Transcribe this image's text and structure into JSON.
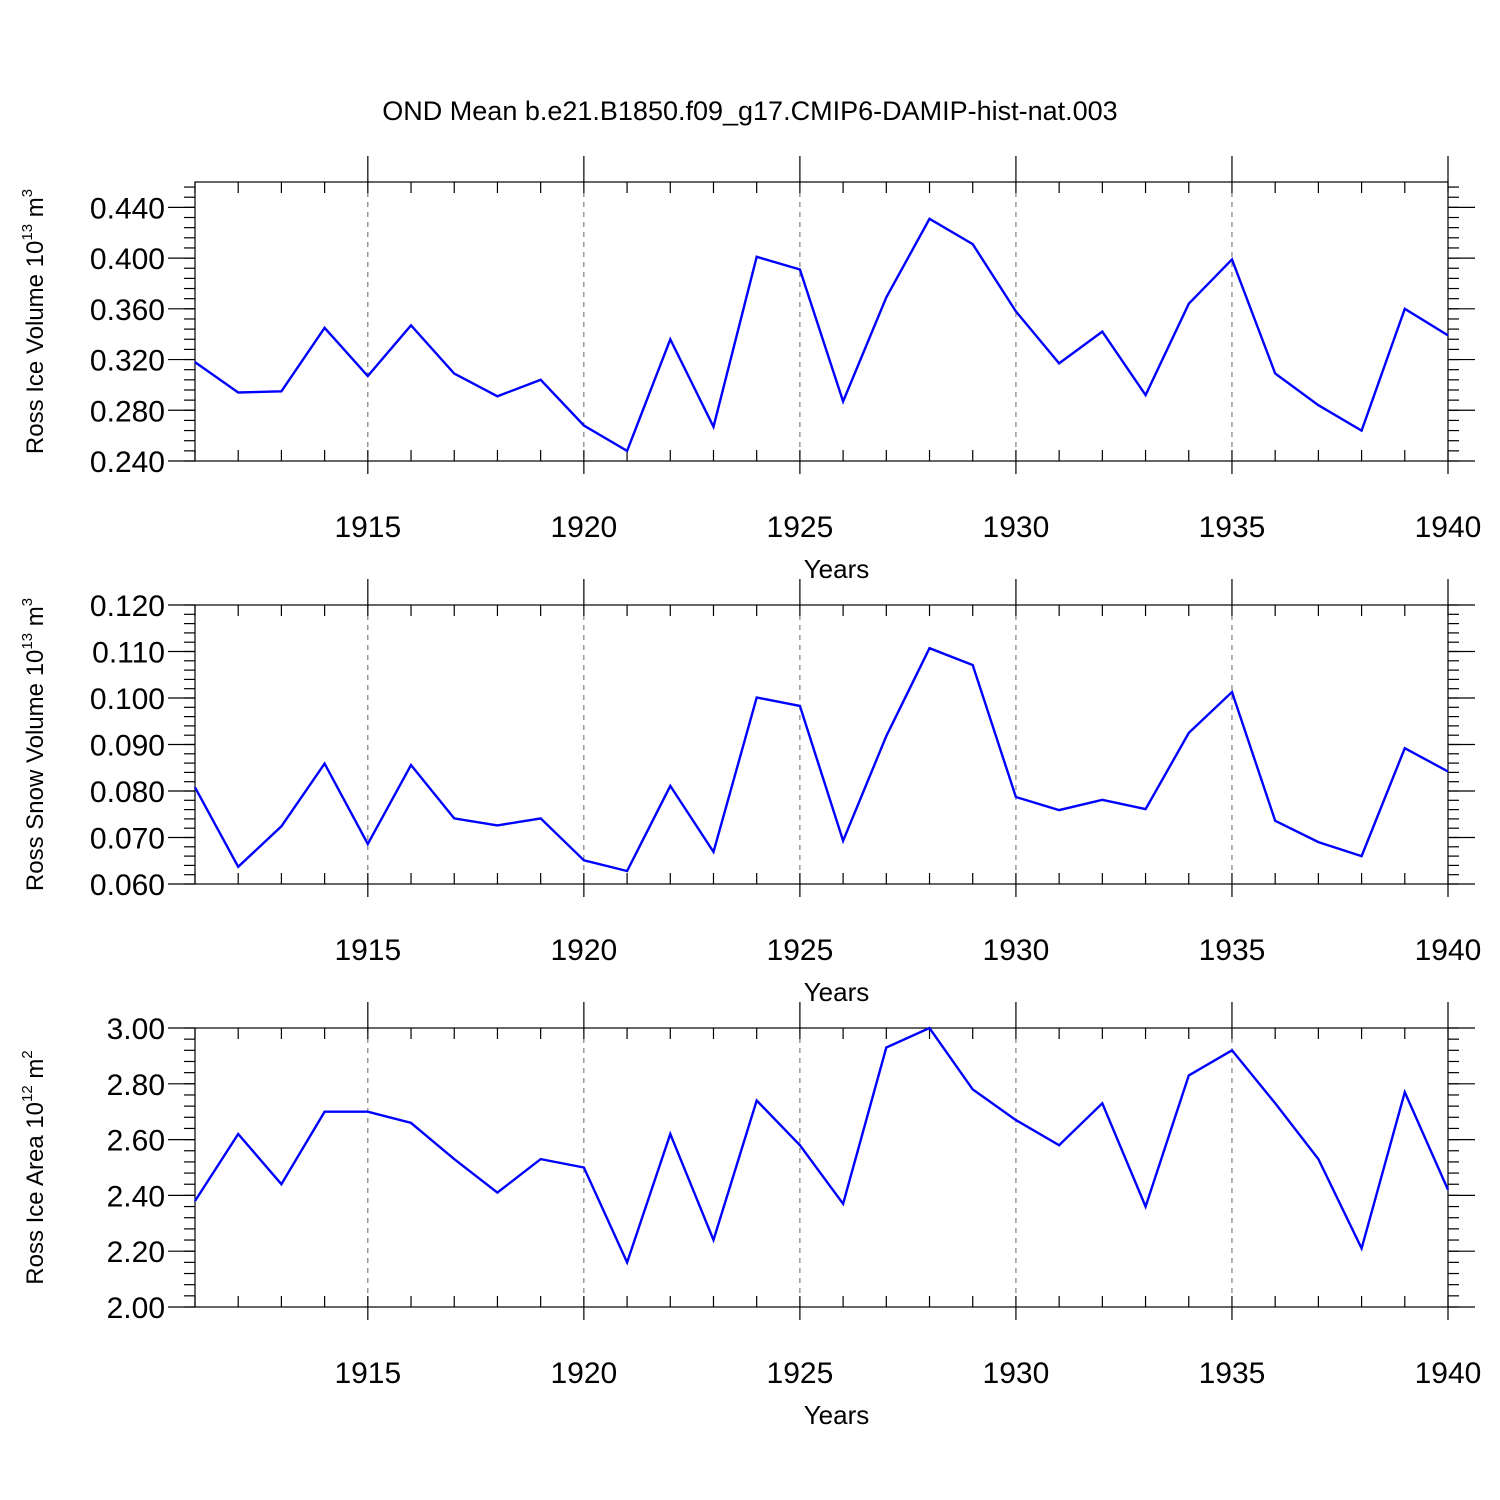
{
  "chart_data": {
    "type": "line",
    "title": "OND Mean b.e21.B1850.f09_g17.CMIP6-DAMIP-hist-nat.003",
    "line_color": "#0000ff",
    "xlabel": "Years",
    "x": [
      1911,
      1912,
      1913,
      1914,
      1915,
      1916,
      1917,
      1918,
      1919,
      1920,
      1921,
      1922,
      1923,
      1924,
      1925,
      1926,
      1927,
      1928,
      1929,
      1930,
      1931,
      1932,
      1933,
      1934,
      1935,
      1936,
      1937,
      1938,
      1939,
      1940
    ],
    "xlim": [
      1911,
      1940
    ],
    "xticks": [
      1915,
      1920,
      1925,
      1930,
      1935,
      1940
    ],
    "xtick_labels": [
      "1915",
      "1920",
      "1925",
      "1930",
      "1935",
      "1940"
    ],
    "x_grid": "dashed at major ticks",
    "panels": [
      {
        "ylabel_main": "Ross Ice Volume 10",
        "ylabel_exp": "13",
        "ylabel_unit": " m",
        "ylabel_unit_exp": "3",
        "ylim": [
          0.24,
          0.46
        ],
        "yticks": [
          0.24,
          0.28,
          0.32,
          0.36,
          0.4,
          0.44
        ],
        "ytick_labels": [
          "0.240",
          "0.280",
          "0.320",
          "0.360",
          "0.400",
          "0.440"
        ],
        "values": [
          0.318,
          0.294,
          0.295,
          0.345,
          0.307,
          0.347,
          0.309,
          0.291,
          0.304,
          0.268,
          0.248,
          0.336,
          0.267,
          0.401,
          0.391,
          0.287,
          0.369,
          0.431,
          0.411,
          0.358,
          0.317,
          0.342,
          0.292,
          0.364,
          0.399,
          0.309,
          0.284,
          0.264,
          0.36,
          0.339
        ]
      },
      {
        "ylabel_main": "Ross Snow Volume 10",
        "ylabel_exp": "13",
        "ylabel_unit": " m",
        "ylabel_unit_exp": "3",
        "ylim": [
          0.06,
          0.12
        ],
        "yticks": [
          0.06,
          0.07,
          0.08,
          0.09,
          0.1,
          0.11,
          0.12
        ],
        "ytick_labels": [
          "0.060",
          "0.070",
          "0.080",
          "0.090",
          "0.100",
          "0.110",
          "0.120"
        ],
        "values": [
          0.0808,
          0.0637,
          0.0724,
          0.0859,
          0.0686,
          0.0856,
          0.0741,
          0.0726,
          0.0741,
          0.0651,
          0.0628,
          0.0811,
          0.0669,
          0.1001,
          0.0983,
          0.0693,
          0.0918,
          0.1107,
          0.1071,
          0.0787,
          0.0759,
          0.0781,
          0.0761,
          0.0925,
          0.1013,
          0.0736,
          0.069,
          0.066,
          0.0892,
          0.0842
        ]
      },
      {
        "ylabel_main": "Ross Ice Area 10",
        "ylabel_exp": "12",
        "ylabel_unit": " m",
        "ylabel_unit_exp": "2",
        "ylim": [
          2.0,
          3.0
        ],
        "yticks": [
          2.0,
          2.2,
          2.4,
          2.6,
          2.8,
          3.0
        ],
        "ytick_labels": [
          "2.00",
          "2.20",
          "2.40",
          "2.60",
          "2.80",
          "3.00"
        ],
        "values": [
          2.38,
          2.62,
          2.44,
          2.7,
          2.7,
          2.66,
          2.53,
          2.41,
          2.53,
          2.5,
          2.16,
          2.62,
          2.24,
          2.74,
          2.58,
          2.37,
          2.93,
          3.0,
          2.78,
          2.67,
          2.58,
          2.73,
          2.36,
          2.83,
          2.92,
          2.73,
          2.53,
          2.21,
          2.77,
          2.42
        ]
      }
    ]
  }
}
